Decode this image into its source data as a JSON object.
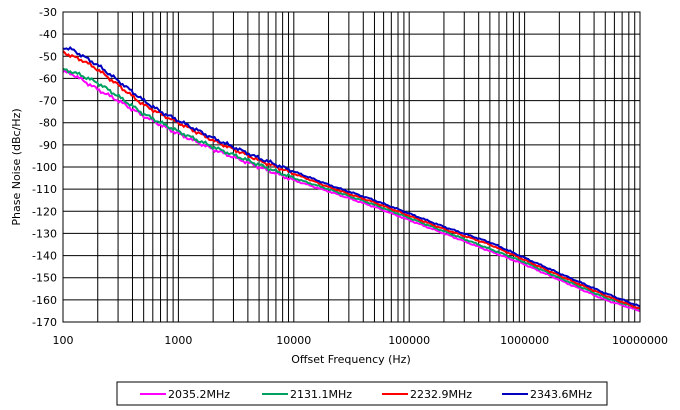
{
  "chart_data": {
    "type": "line",
    "title": "",
    "xlabel": "Offset Frequency (Hz)",
    "ylabel": "Phase Noise (dBc/Hz)",
    "xscale": "log",
    "xlim": [
      100,
      10000000
    ],
    "ylim": [
      -170,
      -30
    ],
    "x_tick_labels": [
      "100",
      "1000",
      "10000",
      "100000",
      "1000000",
      "10000000"
    ],
    "y_tick_labels": [
      "-30",
      "-40",
      "-50",
      "-60",
      "-70",
      "-80",
      "-90",
      "-100",
      "-110",
      "-120",
      "-130",
      "-140",
      "-150",
      "-160",
      "-170"
    ],
    "grid": true,
    "legend_position": "bottom",
    "x": [
      100,
      120,
      150,
      200,
      300,
      500,
      700,
      1000,
      2000,
      5000,
      10000,
      20000,
      50000,
      100000,
      200000,
      500000,
      1000000,
      2000000,
      5000000,
      10000000
    ],
    "series": [
      {
        "name": "2035.2MHz",
        "color": "#ff00ff",
        "values": [
          -57,
          -58,
          -61,
          -65,
          -70,
          -77,
          -81,
          -85,
          -92,
          -100,
          -106,
          -111,
          -118,
          -124,
          -130,
          -138,
          -144,
          -151,
          -160,
          -165
        ]
      },
      {
        "name": "2131.1MHz",
        "color": "#00a060",
        "values": [
          -56,
          -57,
          -59,
          -62,
          -68,
          -76,
          -80,
          -84,
          -91,
          -99,
          -105,
          -110,
          -117,
          -123,
          -129,
          -137,
          -143,
          -150,
          -159,
          -164
        ]
      },
      {
        "name": "2232.9MHz",
        "color": "#ff0000",
        "values": [
          -48,
          -50,
          -52,
          -56,
          -63,
          -72,
          -76,
          -80,
          -88,
          -97,
          -103,
          -109,
          -116,
          -122,
          -128,
          -135,
          -142,
          -149,
          -158,
          -164
        ]
      },
      {
        "name": "2343.6MHz",
        "color": "#0000c0",
        "values": [
          -46,
          -47,
          -50,
          -54,
          -61,
          -70,
          -75,
          -79,
          -87,
          -96,
          -102,
          -108,
          -115,
          -121,
          -127,
          -134,
          -141,
          -148,
          -157,
          -163
        ]
      }
    ]
  }
}
